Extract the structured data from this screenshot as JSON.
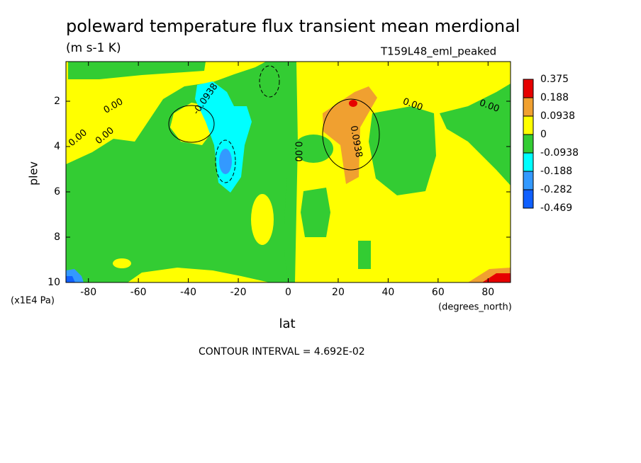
{
  "chart_data": {
    "type": "contour",
    "title": "poleward temperature flux transient mean merdional",
    "units": "(m s-1 K)",
    "dataset": "T159L48_eml_peaked",
    "x_label": "lat",
    "x_units": "(degrees_north)",
    "y_label": "plev",
    "y_units": "(x1E4 Pa)",
    "footnote": "CONTOUR INTERVAL = 4.692E-02",
    "xlim": [
      -89,
      89
    ],
    "xticks": [
      -80,
      -60,
      -40,
      -20,
      0,
      20,
      40,
      60,
      80
    ],
    "ylim": [
      0.25,
      10
    ],
    "yticks": [
      2,
      4,
      6,
      8,
      10
    ],
    "y_inverted": true,
    "colorbar": {
      "levels": [
        0.375,
        0.188,
        0.0938,
        0,
        -0.0938,
        -0.188,
        -0.282,
        -0.469
      ],
      "colors": [
        "#e60000",
        "#f0a030",
        "#ffff00",
        "#33cc33",
        "#00ffff",
        "#3399ff",
        "#1060ff"
      ]
    },
    "contour_labels": [
      "0.00",
      "-0.0938",
      "0.00",
      "0.00",
      "0.00",
      "0.00",
      "0.0938",
      "0.00"
    ]
  }
}
